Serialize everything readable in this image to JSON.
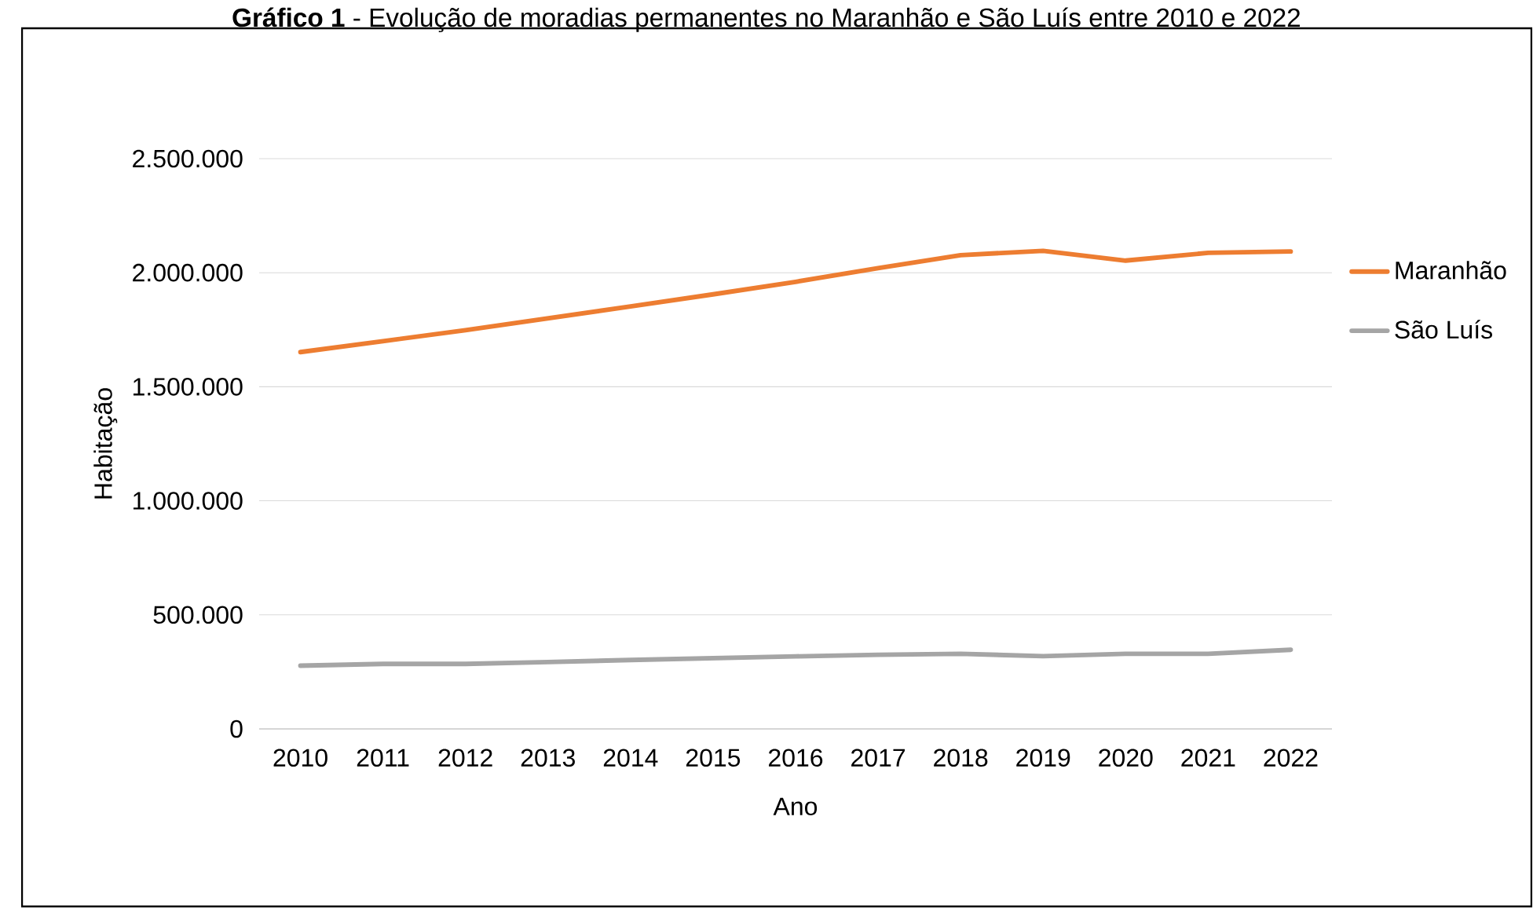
{
  "chart_data": {
    "type": "line",
    "title": "**Gráfico 1** - Evolução de moradias permanentes no Maranhão e São Luís entre 2010 e 2022",
    "xlabel": "Ano",
    "ylabel": "Habitação",
    "categories": [
      "2010",
      "2011",
      "2012",
      "2013",
      "2014",
      "2015",
      "2016",
      "2017",
      "2018",
      "2019",
      "2020",
      "2021",
      "2022"
    ],
    "series": [
      {
        "name": "Maranhão",
        "color": "#ed7d31",
        "values": [
          1652000,
          1700000,
          1748000,
          1800000,
          1852000,
          1905000,
          1960000,
          2020000,
          2077000,
          2096000,
          2053000,
          2087000,
          2093000
        ]
      },
      {
        "name": "São Luís",
        "color": "#a5a5a5",
        "values": [
          277000,
          285000,
          285000,
          293000,
          302000,
          310000,
          318000,
          325000,
          329000,
          319000,
          329000,
          329000,
          347000
        ]
      }
    ],
    "ylim": [
      0,
      2500000
    ],
    "yticks": [
      0,
      {
        "value": 500000,
        "label": "500.000"
      },
      {
        "value": 1000000,
        "label": "1.000.000"
      },
      {
        "value": 1500000,
        "label": "1.500.000"
      },
      {
        "value": 2000000,
        "label": "2.000.000"
      },
      {
        "value": 2500000,
        "label": "2.500.000"
      }
    ],
    "grid": "y",
    "legend": "right",
    "marker": "none",
    "line_style": "solid"
  }
}
